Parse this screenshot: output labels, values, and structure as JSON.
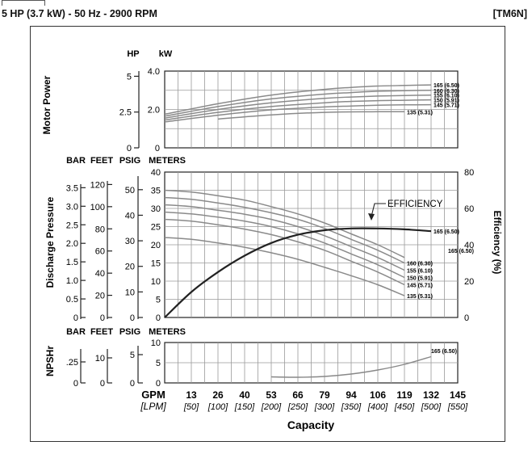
{
  "header": {
    "title": "5 HP (3.7 kW) - 50 Hz - 2900 RPM",
    "model": "[TM6N]"
  },
  "axes": {
    "power_label": "Motor Power",
    "power_units": [
      "HP",
      "kW"
    ],
    "hp_ticks": [
      "5",
      "2.5",
      "0"
    ],
    "kw_ticks": [
      "4.0",
      "2.0",
      "0"
    ],
    "pressure_label": "Discharge Pressure",
    "pressure_units": [
      "BAR",
      "FEET",
      "PSIG",
      "METERS"
    ],
    "bar_ticks": [
      "3.5",
      "3.0",
      "2.5",
      "2.0",
      "1.5",
      "1.0",
      "0.5",
      "0"
    ],
    "feet_ticks": [
      "120",
      "100",
      "80",
      "60",
      "40",
      "20",
      "0"
    ],
    "psig_ticks": [
      "50",
      "40",
      "30",
      "20",
      "10",
      "0"
    ],
    "meters_ticks": [
      "40",
      "35",
      "30",
      "25",
      "20",
      "15",
      "10",
      "5",
      "0"
    ],
    "efficiency_label": "Efficiency (%)",
    "efficiency_ticks": [
      "80",
      "60",
      "40",
      "20",
      "0"
    ],
    "npshr_label": "NPSHr",
    "npshr_units": [
      "BAR",
      "FEET",
      "PSIG",
      "METERS"
    ],
    "npshr_bar_ticks": [
      ".25",
      "0"
    ],
    "npshr_feet_ticks": [
      "10",
      "0"
    ],
    "npshr_psig_ticks": [
      "5",
      "0"
    ],
    "npshr_meters_ticks": [
      "10",
      "5",
      "0"
    ],
    "gpm_label": "GPM",
    "lpm_label": "[LPM]",
    "gpm_ticks": [
      "13",
      "26",
      "40",
      "53",
      "66",
      "79",
      "94",
      "106",
      "119",
      "132",
      "145"
    ],
    "lpm_ticks": [
      "[50]",
      "[100]",
      "[150]",
      "[200]",
      "[250]",
      "[300]",
      "[350]",
      "[400]",
      "[450]",
      "[500]",
      "[550]"
    ],
    "capacity_label": "Capacity",
    "efficiency_annotation": "EFFICIENCY"
  },
  "chart_data": [
    {
      "type": "line",
      "title": "Motor Power",
      "x_unit": "LPM",
      "xlim": [
        0,
        550
      ],
      "ylim": [
        0,
        4.0
      ],
      "ylabel": "kW",
      "series": [
        {
          "name": "165 (6.50)",
          "x": [
            0,
            100,
            200,
            300,
            350,
            400,
            450,
            500
          ],
          "y": [
            1.75,
            2.3,
            2.75,
            3.05,
            3.15,
            3.22,
            3.25,
            3.28
          ]
        },
        {
          "name": "160 (6.30)",
          "x": [
            0,
            100,
            200,
            300,
            350,
            400,
            450,
            500
          ],
          "y": [
            1.65,
            2.15,
            2.55,
            2.8,
            2.88,
            2.95,
            2.98,
            3.0
          ]
        },
        {
          "name": "155 (6.10)",
          "x": [
            0,
            100,
            200,
            300,
            350,
            400,
            450,
            500
          ],
          "y": [
            1.55,
            2.0,
            2.35,
            2.58,
            2.65,
            2.7,
            2.73,
            2.75
          ]
        },
        {
          "name": "150 (5.91)",
          "x": [
            0,
            100,
            200,
            300,
            350,
            400,
            450,
            500
          ],
          "y": [
            1.45,
            1.85,
            2.15,
            2.35,
            2.42,
            2.46,
            2.48,
            2.5
          ]
        },
        {
          "name": "145 (5.71)",
          "x": [
            0,
            100,
            200,
            300,
            350,
            400,
            450,
            500
          ],
          "y": [
            1.35,
            1.7,
            1.98,
            2.13,
            2.18,
            2.22,
            2.24,
            2.25
          ]
        },
        {
          "name": "135 (5.31)",
          "x": [
            100,
            200,
            300,
            400,
            450
          ],
          "y": [
            1.5,
            1.72,
            1.85,
            1.88,
            1.88
          ]
        }
      ]
    },
    {
      "type": "line",
      "title": "Discharge Pressure",
      "x_unit": "LPM",
      "xlim": [
        0,
        550
      ],
      "ylim": [
        0,
        40
      ],
      "ylabel": "METERS",
      "y2label": "Efficiency (%)",
      "y2lim": [
        0,
        80
      ],
      "series": [
        {
          "name": "165 (6.50)",
          "x": [
            0,
            50,
            100,
            150,
            200,
            250,
            300,
            350,
            400,
            450
          ],
          "y": [
            35,
            34.5,
            33.5,
            32.3,
            30.5,
            28.5,
            26,
            23,
            20,
            16.5
          ]
        },
        {
          "name": "160 (6.30)",
          "x": [
            0,
            50,
            100,
            150,
            200,
            250,
            300,
            350,
            400,
            450
          ],
          "y": [
            33,
            32.5,
            31.5,
            30.3,
            28.8,
            27,
            24.5,
            21.5,
            18.5,
            15
          ]
        },
        {
          "name": "155 (6.10)",
          "x": [
            0,
            50,
            100,
            150,
            200,
            250,
            300,
            350,
            400,
            450
          ],
          "y": [
            31,
            30.5,
            29.5,
            28.4,
            27,
            25,
            22.5,
            19.5,
            16.5,
            13
          ]
        },
        {
          "name": "150 (5.91)",
          "x": [
            0,
            50,
            100,
            150,
            200,
            250,
            300,
            350,
            400,
            450
          ],
          "y": [
            29,
            28.5,
            27.6,
            26.5,
            25,
            23,
            20.5,
            17.5,
            14.5,
            11
          ]
        },
        {
          "name": "145 (5.71)",
          "x": [
            0,
            50,
            100,
            150,
            200,
            250,
            300,
            350,
            400,
            450
          ],
          "y": [
            27,
            26.5,
            25.5,
            24.3,
            22.8,
            20.8,
            18.5,
            15.5,
            12.5,
            9
          ]
        },
        {
          "name": "135 (5.31)",
          "x": [
            0,
            50,
            100,
            150,
            200,
            250,
            300,
            350,
            400,
            450
          ],
          "y": [
            22,
            21.5,
            20.5,
            19.3,
            17.8,
            16,
            13.8,
            11.5,
            9,
            6
          ]
        },
        {
          "name": "EFFICIENCY",
          "axis": "y2",
          "x": [
            0,
            50,
            100,
            150,
            200,
            250,
            300,
            350,
            400,
            450,
            500
          ],
          "y": [
            0,
            14,
            25,
            34,
            41,
            45.5,
            48,
            49,
            49,
            48.5,
            47.5
          ]
        }
      ]
    },
    {
      "type": "line",
      "title": "NPSHr",
      "x_unit": "LPM",
      "xlim": [
        0,
        550
      ],
      "ylim": [
        0,
        10
      ],
      "ylabel": "METERS",
      "series": [
        {
          "name": "165 (6.50)",
          "x": [
            200,
            250,
            300,
            350,
            400,
            450,
            500
          ],
          "y": [
            1.5,
            1.4,
            1.6,
            2.2,
            3.2,
            4.6,
            6.5
          ]
        }
      ]
    }
  ]
}
